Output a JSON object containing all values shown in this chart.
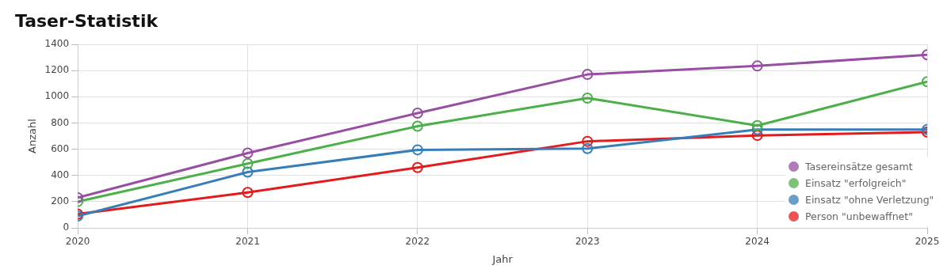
{
  "chart_data": {
    "type": "line",
    "title": "Taser-Statistik",
    "xlabel": "Jahr",
    "ylabel": "Anzahl",
    "x": [
      2020,
      2021,
      2022,
      2023,
      2024,
      2025
    ],
    "series": [
      {
        "name": "Tasereinsätze gesamt",
        "color": "#984ea3",
        "values": [
          230,
          570,
          875,
          1170,
          1235,
          1320
        ]
      },
      {
        "name": "Einsatz \"erfolgreich\"",
        "color": "#4daf4a",
        "values": [
          200,
          490,
          775,
          990,
          780,
          1115
        ]
      },
      {
        "name": "Einsatz \"ohne Verletzung\"",
        "color": "#377eb8",
        "values": [
          90,
          425,
          595,
          605,
          750,
          750
        ]
      },
      {
        "name": "Person \"unbewaffnet\"",
        "color": "#e41a1c",
        "values": [
          105,
          270,
          460,
          660,
          705,
          730
        ]
      }
    ],
    "xlim": [
      2020,
      2025
    ],
    "xticks": [
      2020,
      2021,
      2022,
      2023,
      2024,
      2025
    ],
    "ylim": [
      0,
      1400
    ],
    "yticks": [
      0,
      200,
      400,
      600,
      800,
      1000,
      1200,
      1400
    ],
    "grid": true,
    "legend": "bottom right",
    "marker": "circle",
    "line_style": "solid"
  }
}
